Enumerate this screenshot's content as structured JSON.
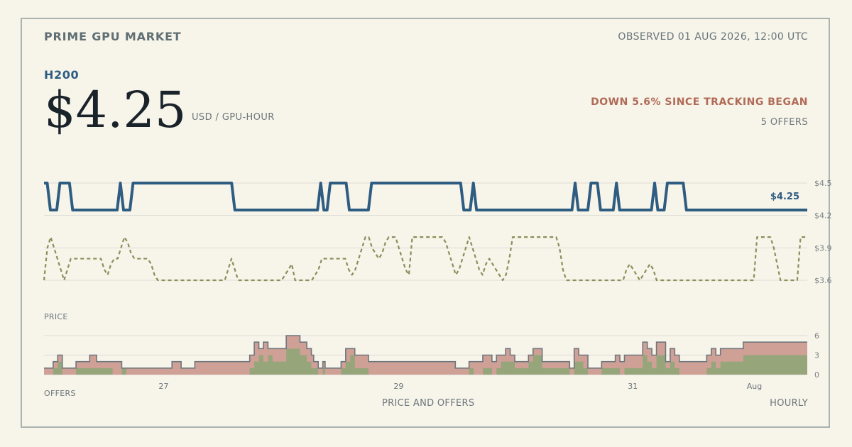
{
  "header": {
    "brand": "PRIME GPU MARKET",
    "observed": "OBSERVED 01 AUG 2026, 12:00 UTC",
    "gpu": "H200",
    "price": "$4.25",
    "unit": "USD / GPU-HOUR",
    "change": "DOWN 5.6% SINCE TRACKING BEGAN",
    "offers": "5 OFFERS"
  },
  "colors": {
    "background": "#f7f4ea",
    "price_line": "#2f5d82",
    "secondary_line": "#87915a",
    "offers_total": "#cfa196",
    "offers_green": "#96a57a",
    "offers_outline": "#6f767e",
    "grid": "#dcdcd6",
    "down": "#b06a55"
  },
  "chart_data": [
    {
      "type": "line",
      "title": "",
      "xlabel": "",
      "ylabel": "PRICE",
      "caption": "PRICE AND OFFERS",
      "frequency": "HOURLY",
      "x_range": [
        "2026-07-26T00:00",
        "2026-08-01T12:00"
      ],
      "ylim": [
        3.6,
        4.5
      ],
      "yticks": [
        "$4.5",
        "$4.2",
        "$3.9",
        "$3.6"
      ],
      "last_value_label": "$4.25",
      "series": [
        {
          "style": "solid",
          "color": "#2f5d82",
          "values": [
            4.5,
            4.5,
            4.25,
            4.25,
            4.25,
            4.5,
            4.5,
            4.5,
            4.5,
            4.25,
            4.25,
            4.25,
            4.25,
            4.25,
            4.25,
            4.25,
            4.25,
            4.25,
            4.25,
            4.25,
            4.25,
            4.25,
            4.25,
            4.25,
            4.5,
            4.25,
            4.25,
            4.25,
            4.5,
            4.5,
            4.5,
            4.5,
            4.5,
            4.5,
            4.5,
            4.5,
            4.5,
            4.5,
            4.5,
            4.5,
            4.5,
            4.5,
            4.5,
            4.5,
            4.5,
            4.5,
            4.5,
            4.5,
            4.5,
            4.5,
            4.5,
            4.5,
            4.5,
            4.5,
            4.5,
            4.5,
            4.5,
            4.5,
            4.5,
            4.5,
            4.25,
            4.25,
            4.25,
            4.25,
            4.25,
            4.25,
            4.25,
            4.25,
            4.25,
            4.25,
            4.25,
            4.25,
            4.25,
            4.25,
            4.25,
            4.25,
            4.25,
            4.25,
            4.25,
            4.25,
            4.25,
            4.25,
            4.25,
            4.25,
            4.25,
            4.25,
            4.25,
            4.5,
            4.25,
            4.25,
            4.5,
            4.5,
            4.5,
            4.5,
            4.5,
            4.5,
            4.25,
            4.25,
            4.25,
            4.25,
            4.25,
            4.25,
            4.25,
            4.5,
            4.5,
            4.5,
            4.5,
            4.5,
            4.5,
            4.5,
            4.5,
            4.5,
            4.5,
            4.5,
            4.5,
            4.5,
            4.5,
            4.5,
            4.5,
            4.5,
            4.5,
            4.5,
            4.5,
            4.5,
            4.5,
            4.5,
            4.5,
            4.5,
            4.5,
            4.5,
            4.5,
            4.5,
            4.25,
            4.25,
            4.25,
            4.5,
            4.25,
            4.25,
            4.25,
            4.25,
            4.25,
            4.25,
            4.25,
            4.25,
            4.25,
            4.25,
            4.25,
            4.25,
            4.25,
            4.25,
            4.25,
            4.25,
            4.25,
            4.25,
            4.25,
            4.25,
            4.25,
            4.25,
            4.25,
            4.25,
            4.25,
            4.25,
            4.25,
            4.25,
            4.25,
            4.25,
            4.25,
            4.5,
            4.25,
            4.25,
            4.25,
            4.25,
            4.5,
            4.5,
            4.5,
            4.25,
            4.25,
            4.25,
            4.25,
            4.25,
            4.5,
            4.25,
            4.25,
            4.25,
            4.25,
            4.25,
            4.25,
            4.25,
            4.25,
            4.25,
            4.25,
            4.25,
            4.5,
            4.25,
            4.25,
            4.25,
            4.5,
            4.5,
            4.5,
            4.5,
            4.5,
            4.5,
            4.25,
            4.25,
            4.25,
            4.25,
            4.25,
            4.25,
            4.25,
            4.25,
            4.25,
            4.25,
            4.25,
            4.25,
            4.25,
            4.25,
            4.25,
            4.25,
            4.25,
            4.25,
            4.25,
            4.25,
            4.25,
            4.25,
            4.25,
            4.25,
            4.25,
            4.25,
            4.25,
            4.25,
            4.25,
            4.25,
            4.25,
            4.25,
            4.25,
            4.25,
            4.25,
            4.25,
            4.25,
            4.25,
            4.25
          ]
        },
        {
          "style": "dashed",
          "color": "#87915a",
          "values": [
            3.6,
            3.9,
            4.0,
            3.9,
            3.8,
            3.7,
            3.6,
            3.7,
            3.8,
            3.8,
            3.8,
            3.8,
            3.8,
            3.8,
            3.8,
            3.8,
            3.8,
            3.8,
            3.7,
            3.65,
            3.75,
            3.8,
            3.8,
            3.9,
            4.0,
            3.95,
            3.85,
            3.8,
            3.8,
            3.8,
            3.8,
            3.8,
            3.75,
            3.65,
            3.6,
            3.6,
            3.6,
            3.6,
            3.6,
            3.6,
            3.6,
            3.6,
            3.6,
            3.6,
            3.6,
            3.6,
            3.6,
            3.6,
            3.6,
            3.6,
            3.6,
            3.6,
            3.6,
            3.6,
            3.6,
            3.7,
            3.8,
            3.7,
            3.6,
            3.6,
            3.6,
            3.6,
            3.6,
            3.6,
            3.6,
            3.6,
            3.6,
            3.6,
            3.6,
            3.6,
            3.6,
            3.6,
            3.65,
            3.7,
            3.75,
            3.6,
            3.6,
            3.6,
            3.6,
            3.6,
            3.6,
            3.65,
            3.7,
            3.8,
            3.8,
            3.8,
            3.8,
            3.8,
            3.8,
            3.8,
            3.8,
            3.7,
            3.65,
            3.7,
            3.8,
            3.9,
            4.0,
            4.0,
            3.9,
            3.85,
            3.8,
            3.85,
            3.95,
            4.0,
            4.0,
            4.0,
            3.9,
            3.8,
            3.7,
            3.65,
            4.0,
            4.0,
            4.0,
            4.0,
            4.0,
            4.0,
            4.0,
            4.0,
            4.0,
            4.0,
            3.95,
            3.85,
            3.75,
            3.65,
            3.7,
            3.8,
            3.9,
            4.0,
            3.9,
            3.8,
            3.7,
            3.65,
            3.75,
            3.8,
            3.75,
            3.7,
            3.65,
            3.6,
            3.65,
            3.8,
            4.0,
            4.0,
            4.0,
            4.0,
            4.0,
            4.0,
            4.0,
            4.0,
            4.0,
            4.0,
            4.0,
            4.0,
            4.0,
            4.0,
            3.9,
            3.7,
            3.6,
            3.6,
            3.6,
            3.6,
            3.6,
            3.6,
            3.6,
            3.6,
            3.6,
            3.6,
            3.6,
            3.6,
            3.6,
            3.6,
            3.6,
            3.6,
            3.6,
            3.6,
            3.7,
            3.75,
            3.7,
            3.65,
            3.6,
            3.65,
            3.7,
            3.75,
            3.7,
            3.6,
            3.6,
            3.6,
            3.6,
            3.6,
            3.6,
            3.6,
            3.6,
            3.6,
            3.6,
            3.6,
            3.6,
            3.6,
            3.6,
            3.6,
            3.6,
            3.6,
            3.6,
            3.6,
            3.6,
            3.6,
            3.6,
            3.6,
            3.6,
            3.6,
            3.6,
            3.6,
            3.6,
            3.6,
            3.6,
            4.0,
            4.0,
            4.0,
            4.0,
            4.0,
            3.9,
            3.75,
            3.6,
            3.6,
            3.6,
            3.6,
            3.6,
            3.6,
            4.0,
            4.0,
            4.0
          ]
        }
      ]
    },
    {
      "type": "area",
      "title": "",
      "ylabel": "OFFERS",
      "ylim": [
        0,
        6
      ],
      "yticks": [
        "6",
        "3",
        "0"
      ],
      "x_ticks": [
        "27",
        "29",
        "31",
        "Aug"
      ],
      "series": [
        {
          "name": "",
          "color": "#cfa196",
          "values": [
            1,
            1,
            1,
            1,
            2,
            2,
            3,
            3,
            1,
            1,
            1,
            1,
            1,
            1,
            2,
            2,
            2,
            2,
            2,
            2,
            3,
            3,
            3,
            2,
            2,
            2,
            2,
            2,
            2,
            2,
            2,
            2,
            2,
            2,
            1,
            1,
            1,
            1,
            1,
            1,
            1,
            1,
            1,
            1,
            1,
            1,
            1,
            1,
            1,
            1,
            1,
            1,
            1,
            1,
            1,
            1,
            2,
            2,
            2,
            2,
            1,
            1,
            1,
            1,
            1,
            1,
            2,
            2,
            2,
            2,
            2,
            2,
            2,
            2,
            2,
            2,
            2,
            2,
            2,
            2,
            2,
            2,
            2,
            2,
            2,
            2,
            2,
            2,
            2,
            2,
            3,
            3,
            5,
            5,
            4,
            4,
            5,
            5,
            4,
            4,
            4,
            4,
            4,
            4,
            4,
            4,
            6,
            6,
            6,
            6,
            6,
            6,
            5,
            5,
            5,
            4,
            4,
            3,
            2,
            2,
            1,
            1,
            2,
            1,
            1,
            1,
            1,
            1,
            1,
            1,
            2,
            2,
            4,
            4,
            4,
            4,
            3,
            3,
            3,
            3,
            3,
            3,
            2,
            2,
            2,
            2,
            2,
            2,
            2,
            2,
            2,
            2,
            2,
            2,
            2,
            2,
            2,
            2,
            2,
            2,
            2,
            2,
            2,
            2,
            2,
            2,
            2,
            2,
            2,
            2,
            2,
            2,
            2,
            2,
            2,
            2,
            2,
            2,
            2,
            2,
            1,
            1,
            1,
            1,
            1,
            1,
            2,
            2,
            2,
            2,
            2,
            2,
            3,
            3,
            3,
            3,
            2,
            2,
            3,
            3,
            3,
            3,
            4,
            4,
            3,
            3,
            2,
            2,
            2,
            2,
            2,
            2,
            3,
            3,
            4,
            4,
            4,
            4,
            2,
            2,
            2,
            2,
            2,
            2,
            2,
            2,
            2,
            2,
            2,
            2,
            1,
            1,
            4,
            4,
            3,
            3,
            3,
            3,
            1,
            1,
            1,
            1,
            1,
            1,
            2,
            2,
            2,
            2,
            2,
            2,
            3,
            3,
            2,
            2,
            3,
            3,
            3,
            3,
            3,
            3,
            3,
            3,
            5,
            5,
            4,
            4,
            3,
            3,
            5,
            5,
            5,
            5,
            2,
            2,
            4,
            4,
            3,
            3,
            2,
            2,
            2,
            2,
            2,
            2,
            2,
            2,
            2,
            2,
            2,
            2,
            3,
            3,
            4,
            4,
            3,
            3,
            4,
            4,
            4,
            4,
            4,
            4,
            4,
            4,
            4,
            4,
            5,
            5,
            5,
            5,
            5,
            5,
            5,
            5,
            5,
            5,
            5,
            5,
            5,
            5,
            5,
            5,
            5,
            5,
            5,
            5,
            5,
            5,
            5,
            5,
            5,
            5,
            5,
            5
          ]
        },
        {
          "name": "",
          "color": "#96a57a",
          "values": [
            0,
            0,
            0,
            0,
            1,
            1,
            2,
            2,
            0,
            0,
            0,
            0,
            0,
            0,
            1,
            1,
            1,
            1,
            1,
            1,
            1,
            1,
            1,
            1,
            1,
            1,
            1,
            1,
            1,
            1,
            0,
            0,
            0,
            0,
            1,
            1,
            0,
            0,
            0,
            0,
            0,
            0,
            0,
            0,
            0,
            0,
            0,
            0,
            0,
            0,
            0,
            0,
            0,
            0,
            0,
            0,
            0,
            0,
            0,
            0,
            0,
            0,
            0,
            0,
            0,
            0,
            0,
            0,
            0,
            0,
            0,
            0,
            0,
            0,
            0,
            0,
            0,
            0,
            0,
            0,
            0,
            0,
            0,
            0,
            0,
            0,
            0,
            0,
            0,
            0,
            1,
            1,
            2,
            2,
            3,
            3,
            2,
            2,
            3,
            3,
            2,
            2,
            2,
            2,
            2,
            2,
            4,
            4,
            4,
            4,
            4,
            4,
            3,
            3,
            3,
            2,
            2,
            1,
            1,
            1,
            0,
            0,
            1,
            0,
            0,
            0,
            0,
            0,
            0,
            0,
            1,
            1,
            2,
            2,
            3,
            3,
            1,
            1,
            1,
            1,
            1,
            1,
            0,
            0,
            0,
            0,
            0,
            0,
            0,
            0,
            0,
            0,
            0,
            0,
            0,
            0,
            0,
            0,
            0,
            0,
            0,
            0,
            0,
            0,
            0,
            0,
            0,
            0,
            0,
            0,
            0,
            0,
            0,
            0,
            0,
            0,
            0,
            0,
            0,
            0,
            0,
            0,
            0,
            0,
            0,
            0,
            1,
            1,
            0,
            0,
            0,
            0,
            1,
            1,
            1,
            1,
            0,
            0,
            1,
            1,
            2,
            2,
            2,
            2,
            2,
            2,
            1,
            1,
            1,
            1,
            1,
            1,
            2,
            2,
            3,
            3,
            3,
            3,
            1,
            1,
            1,
            1,
            1,
            1,
            1,
            1,
            1,
            1,
            1,
            1,
            0,
            0,
            2,
            2,
            2,
            2,
            1,
            1,
            0,
            0,
            0,
            0,
            0,
            0,
            1,
            1,
            1,
            1,
            1,
            1,
            1,
            1,
            0,
            0,
            1,
            1,
            1,
            1,
            1,
            1,
            1,
            1,
            3,
            3,
            2,
            2,
            1,
            1,
            3,
            3,
            3,
            3,
            1,
            1,
            2,
            2,
            1,
            1,
            0,
            0,
            0,
            0,
            0,
            0,
            0,
            0,
            0,
            0,
            0,
            0,
            1,
            1,
            2,
            2,
            1,
            1,
            2,
            2,
            2,
            2,
            2,
            2,
            2,
            2,
            2,
            2,
            3,
            3,
            3,
            3,
            3,
            3,
            3,
            3,
            3,
            3,
            3,
            3,
            3,
            3,
            3,
            3,
            3,
            3,
            3,
            3,
            3,
            3,
            3,
            3,
            3,
            3,
            3,
            3
          ]
        }
      ]
    }
  ]
}
